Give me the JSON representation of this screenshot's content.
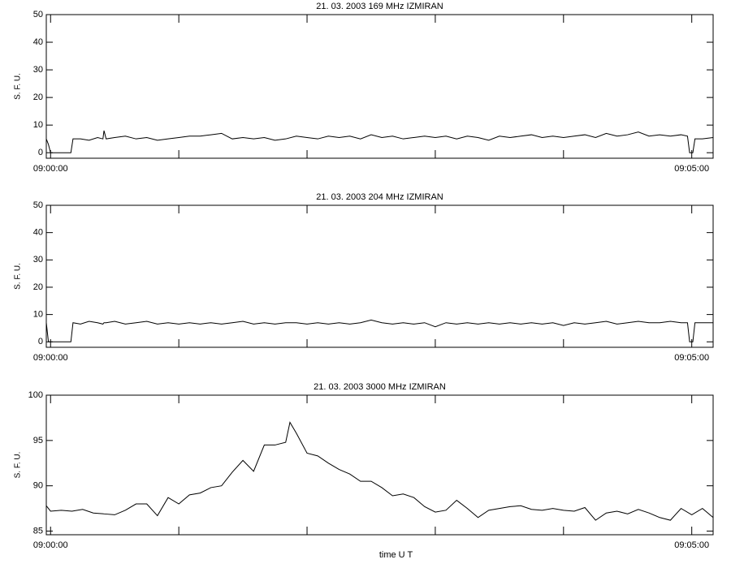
{
  "chart_data": [
    {
      "type": "line",
      "title": "21.  03.  2003    169 MHz    IZMIRAN",
      "ylabel": "S. F. U.",
      "xlim": [
        -2,
        310
      ],
      "xticks": [
        {
          "value": 0,
          "label": "09:00:00"
        },
        {
          "value": 300,
          "label": "09:05:00"
        }
      ],
      "xminor": [
        60,
        120,
        180,
        240
      ],
      "ylim": [
        -2,
        50
      ],
      "yticks": [
        0,
        10,
        20,
        30,
        40,
        50
      ],
      "color": "#000000",
      "x": [
        -2,
        -1,
        0,
        9.5,
        10.5,
        14,
        18,
        22,
        24.5,
        25,
        26,
        30,
        35,
        40,
        45,
        50,
        55,
        60,
        65,
        70,
        75,
        80,
        85,
        90,
        95,
        100,
        105,
        110,
        115,
        120,
        125,
        130,
        135,
        140,
        145,
        150,
        155,
        160,
        165,
        170,
        175,
        180,
        185,
        190,
        195,
        200,
        205,
        210,
        215,
        220,
        225,
        230,
        235,
        240,
        245,
        250,
        255,
        260,
        265,
        270,
        275,
        280,
        285,
        290,
        295,
        298,
        299,
        300.5,
        301.5,
        305,
        310
      ],
      "values": [
        5,
        3,
        0,
        0,
        5,
        5,
        4.5,
        5.5,
        5,
        8,
        5,
        5.5,
        6,
        5,
        5.5,
        4.5,
        5,
        5.5,
        6,
        6,
        6.5,
        7,
        5,
        5.5,
        5,
        5.5,
        4.5,
        5,
        6,
        5.5,
        5,
        6,
        5.5,
        6,
        5,
        6.5,
        5.5,
        6,
        5,
        5.5,
        6,
        5.5,
        6,
        5,
        6,
        5.5,
        4.5,
        6,
        5.5,
        6,
        6.5,
        5.5,
        6,
        5.5,
        6,
        6.5,
        5.5,
        7,
        6,
        6.5,
        7.5,
        6,
        6.5,
        6,
        6.5,
        6,
        0,
        0,
        5,
        5,
        5.5
      ]
    },
    {
      "type": "line",
      "title": "21.  03.  2003    204 MHz    IZMIRAN",
      "ylabel": "S. F. U.",
      "xlim": [
        -2,
        310
      ],
      "xticks": [
        {
          "value": 0,
          "label": "09:00:00"
        },
        {
          "value": 300,
          "label": "09:05:00"
        }
      ],
      "xminor": [
        60,
        120,
        180,
        240
      ],
      "ylim": [
        -2,
        50
      ],
      "yticks": [
        0,
        10,
        20,
        30,
        40,
        50
      ],
      "color": "#000000",
      "x": [
        -2,
        -1,
        0,
        9.5,
        10.5,
        14,
        18,
        22,
        24.5,
        25,
        26,
        30,
        35,
        40,
        45,
        50,
        55,
        60,
        65,
        70,
        75,
        80,
        85,
        90,
        95,
        100,
        105,
        110,
        115,
        120,
        125,
        130,
        135,
        140,
        145,
        150,
        155,
        160,
        165,
        170,
        175,
        180,
        185,
        190,
        195,
        200,
        205,
        210,
        215,
        220,
        225,
        230,
        235,
        240,
        245,
        250,
        255,
        260,
        265,
        270,
        275,
        280,
        285,
        290,
        295,
        298,
        299,
        300.5,
        301.5,
        305,
        310
      ],
      "values": [
        7,
        0,
        0,
        0,
        7,
        6.5,
        7.5,
        7,
        6.5,
        7,
        7,
        7.5,
        6.5,
        7,
        7.5,
        6.5,
        7,
        6.5,
        7,
        6.5,
        7,
        6.5,
        7,
        7.5,
        6.5,
        7,
        6.5,
        7,
        7,
        6.5,
        7,
        6.5,
        7,
        6.5,
        7,
        8,
        7,
        6.5,
        7,
        6.5,
        7,
        5.5,
        7,
        6.5,
        7,
        6.5,
        7,
        6.5,
        7,
        6.5,
        7,
        6.5,
        7,
        6,
        7,
        6.5,
        7,
        7.5,
        6.5,
        7,
        7.5,
        7,
        7,
        7.5,
        7,
        7,
        0,
        0,
        7,
        7,
        7
      ]
    },
    {
      "type": "line",
      "title": "21.  03.  2003    3000 MHz    IZMIRAN",
      "ylabel": "S. F. U.",
      "xlabel": "time  U T",
      "xlim": [
        -2,
        310
      ],
      "xticks": [
        {
          "value": 0,
          "label": "09:00:00"
        },
        {
          "value": 300,
          "label": "09:05:00"
        }
      ],
      "xminor": [
        60,
        120,
        180,
        240
      ],
      "ylim": [
        84.6,
        100
      ],
      "yticks": [
        85,
        90,
        95,
        100
      ],
      "color": "#000000",
      "x": [
        -2,
        0,
        5,
        10,
        15,
        20,
        25,
        30,
        35,
        40,
        45,
        50,
        55,
        60,
        65,
        70,
        75,
        80,
        85,
        90,
        95,
        100,
        105,
        110,
        112,
        115,
        120,
        125,
        130,
        135,
        140,
        145,
        150,
        155,
        160,
        165,
        170,
        175,
        180,
        185,
        190,
        195,
        200,
        205,
        210,
        215,
        220,
        225,
        230,
        235,
        240,
        245,
        250,
        255,
        260,
        265,
        270,
        275,
        280,
        285,
        290,
        295,
        300,
        305,
        310
      ],
      "values": [
        87.8,
        87.2,
        87.3,
        87.2,
        87.4,
        87.0,
        86.9,
        86.8,
        87.3,
        88.0,
        88.0,
        86.7,
        88.7,
        88.0,
        89.0,
        89.2,
        89.8,
        90.0,
        91.5,
        92.8,
        91.6,
        94.5,
        94.5,
        94.8,
        97.0,
        95.8,
        93.6,
        93.3,
        92.5,
        91.8,
        91.3,
        90.5,
        90.5,
        89.8,
        88.9,
        89.1,
        88.7,
        87.7,
        87.1,
        87.3,
        88.4,
        87.5,
        86.5,
        87.3,
        87.5,
        87.7,
        87.8,
        87.4,
        87.3,
        87.5,
        87.3,
        87.2,
        87.6,
        86.2,
        87.0,
        87.2,
        86.9,
        87.4,
        87.0,
        86.5,
        86.2,
        87.5,
        86.8,
        87.5,
        86.5
      ]
    }
  ]
}
